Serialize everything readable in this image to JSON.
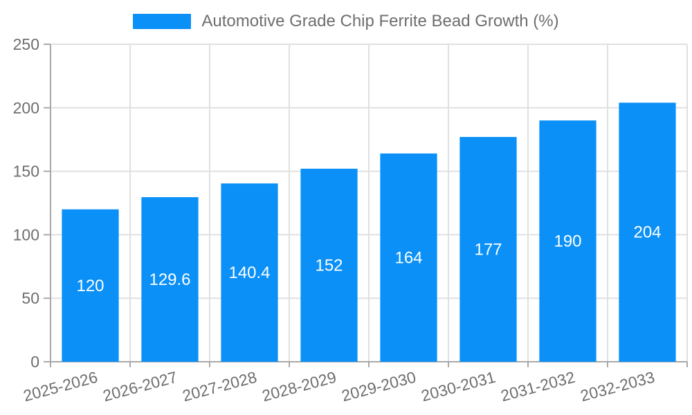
{
  "chart_data": {
    "type": "bar",
    "title": "Automotive Grade Chip Ferrite Bead Growth (%)",
    "legend_position": "top",
    "categories": [
      "2025-2026",
      "2026-2027",
      "2027-2028",
      "2028-2029",
      "2029-2030",
      "2030-2031",
      "2031-2032",
      "2032-2033"
    ],
    "values": [
      120,
      129.6,
      140.4,
      152,
      164,
      177,
      190,
      204
    ],
    "xlabel": "",
    "ylabel": "",
    "ylim": [
      0,
      250
    ],
    "yticks": [
      0,
      50,
      100,
      150,
      200,
      250
    ],
    "grid": true,
    "x_label_rotation": -15,
    "colors": {
      "bar": "#0A90F7",
      "bar_value_text": "#ffffff",
      "axis_line": "#a8a8a8",
      "grid_line": "#e0e0e0",
      "tick_text": "#6e6e6e",
      "legend_text": "#6e6e6e"
    }
  }
}
